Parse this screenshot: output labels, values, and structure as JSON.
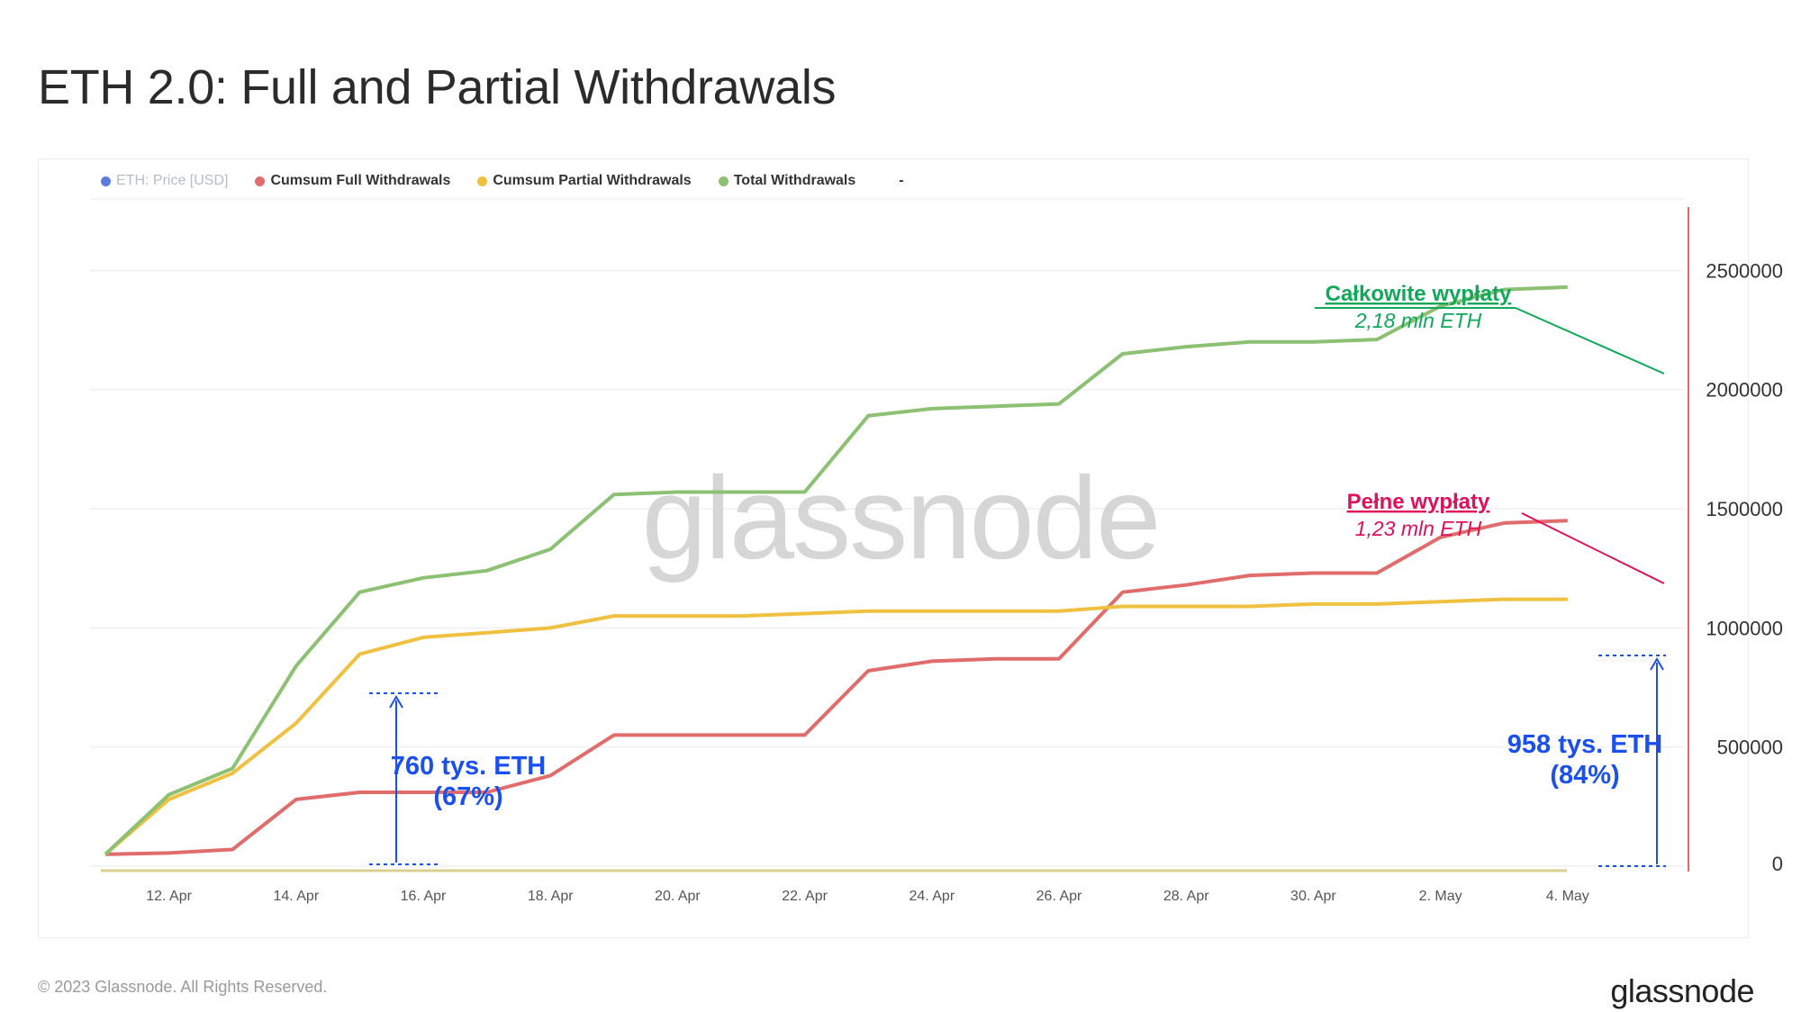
{
  "title": "ETH 2.0: Full and Partial Withdrawals",
  "footer": {
    "copyright": "© 2023 Glassnode. All Rights Reserved.",
    "logo": "glassnode"
  },
  "watermark": "glassnode",
  "legend": [
    {
      "label": "ETH: Price [USD]",
      "color": "#5b7be0",
      "muted": true
    },
    {
      "label": "Cumsum Full Withdrawals",
      "color": "#e06c6c",
      "muted": false
    },
    {
      "label": "Cumsum Partial Withdrawals",
      "color": "#f0c040",
      "muted": false
    },
    {
      "label": "Total Withdrawals",
      "color": "#8cc072",
      "muted": false
    },
    {
      "label": "-",
      "color": null,
      "muted": false
    }
  ],
  "annotations": {
    "total": {
      "title": "Całkowite wypłaty",
      "value": "2,18 mln ETH",
      "color": "#10a95a"
    },
    "full": {
      "title": "Pełne wypłaty",
      "value": "1,23 mln ETH",
      "color": "#e0105a"
    },
    "partial_mid": {
      "line1": "760 tys. ETH",
      "line2": "(67%)",
      "color": "#1a4ff0"
    },
    "partial_end": {
      "line1": "958 tys. ETH",
      "line2": "(84%)",
      "color": "#1a4ff0"
    }
  },
  "chart_data": {
    "type": "line",
    "x": [
      "11. Apr",
      "12. Apr",
      "13. Apr",
      "14. Apr",
      "15. Apr",
      "16. Apr",
      "17. Apr",
      "18. Apr",
      "19. Apr",
      "20. Apr",
      "21. Apr",
      "22. Apr",
      "23. Apr",
      "24. Apr",
      "25. Apr",
      "26. Apr",
      "27. Apr",
      "28. Apr",
      "29. Apr",
      "30. Apr",
      "1. May",
      "2. May",
      "3. May",
      "4. May",
      "5. May"
    ],
    "x_tick_labels": [
      "12. Apr",
      "14. Apr",
      "16. Apr",
      "18. Apr",
      "20. Apr",
      "22. Apr",
      "24. Apr",
      "26. Apr",
      "28. Apr",
      "30. Apr",
      "2. May",
      "4. May"
    ],
    "y_tick_labels": [
      "0",
      "500000",
      "1000000",
      "1500000",
      "2000000",
      "2500000"
    ],
    "ylim": [
      0,
      2800000
    ],
    "grid": true,
    "legend_position": "top-left",
    "series": [
      {
        "name": "Cumsum Full Withdrawals",
        "color": "#e06c6c",
        "values": [
          50000,
          55000,
          70000,
          280000,
          310000,
          310000,
          310000,
          380000,
          550000,
          550000,
          550000,
          550000,
          820000,
          860000,
          870000,
          870000,
          1150000,
          1180000,
          1220000,
          1230000,
          1230000,
          1380000,
          1440000,
          1450000,
          null
        ]
      },
      {
        "name": "Cumsum Partial Withdrawals",
        "color": "#f0c040",
        "values": [
          50000,
          280000,
          390000,
          600000,
          890000,
          960000,
          980000,
          1000000,
          1050000,
          1050000,
          1050000,
          1060000,
          1070000,
          1070000,
          1070000,
          1070000,
          1090000,
          1090000,
          1090000,
          1100000,
          1100000,
          1110000,
          1120000,
          1120000,
          null
        ]
      },
      {
        "name": "Total Withdrawals",
        "color": "#8cc072",
        "values": [
          50000,
          300000,
          410000,
          840000,
          1150000,
          1210000,
          1240000,
          1330000,
          1560000,
          1570000,
          1570000,
          1570000,
          1890000,
          1920000,
          1930000,
          1940000,
          2150000,
          2180000,
          2200000,
          2200000,
          2210000,
          2350000,
          2420000,
          2430000,
          null
        ]
      }
    ]
  }
}
